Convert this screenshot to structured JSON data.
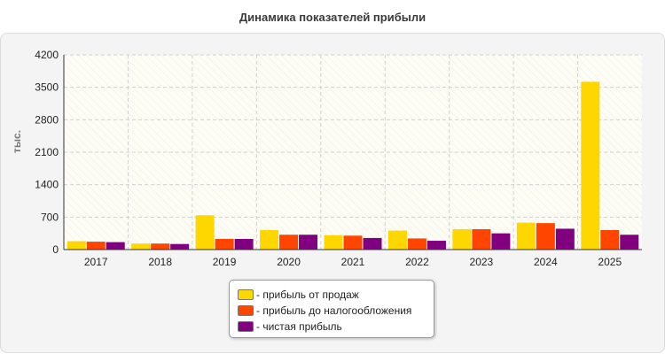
{
  "title": "Динамика показателей прибыли",
  "chart_data": {
    "type": "bar",
    "title": "Динамика показателей прибыли",
    "ylabel": "тыс.",
    "xlabel": "",
    "ylim": [
      0,
      4200
    ],
    "yticks": [
      "0",
      "700",
      "1400",
      "2100",
      "2800",
      "3500",
      "4200"
    ],
    "categories": [
      "2017",
      "2018",
      "2019",
      "2020",
      "2021",
      "2022",
      "2023",
      "2024",
      "2025"
    ],
    "grid": true,
    "legend_position": "bottom-center",
    "series": [
      {
        "name": "- прибыль от продаж",
        "color": "#ffd700",
        "values": [
          180,
          130,
          740,
          420,
          310,
          410,
          440,
          580,
          3620
        ]
      },
      {
        "name": "- прибыль до налогообложения",
        "color": "#ff4500",
        "values": [
          170,
          130,
          230,
          320,
          300,
          240,
          440,
          570,
          420
        ]
      },
      {
        "name": "- чистая прибыль",
        "color": "#800080",
        "values": [
          160,
          120,
          230,
          320,
          250,
          190,
          350,
          450,
          320
        ]
      }
    ]
  }
}
